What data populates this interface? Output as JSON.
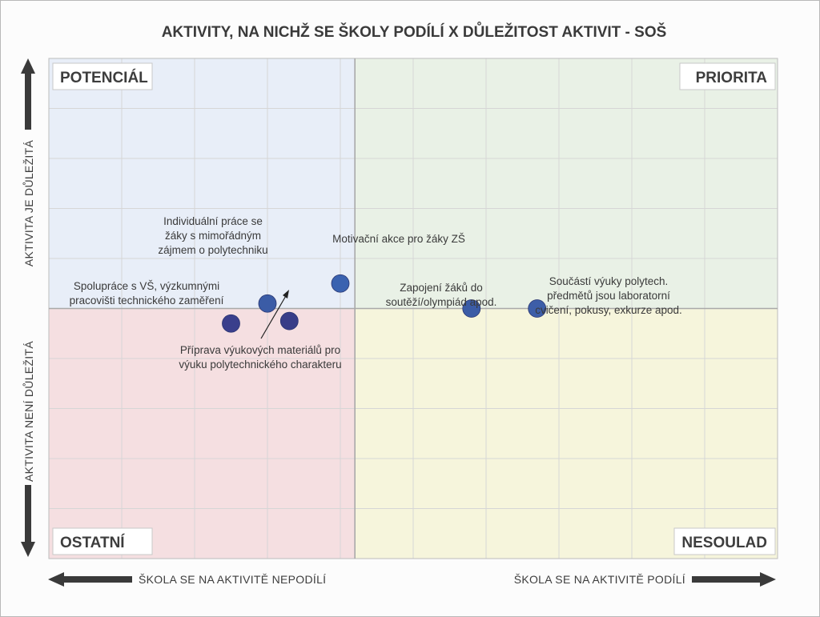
{
  "chart_data": {
    "type": "scatter",
    "title": "AKTIVITY, NA NICHŽ SE ŠKOLY PODÍLÍ X DŮLEŽITOST AKTIVIT - SOŠ",
    "quadrants": {
      "top_left": "POTENCIÁL",
      "top_right": "PRIORITA",
      "bottom_left": "OSTATNÍ",
      "bottom_right": "NESOULAD"
    },
    "quadrant_colors": {
      "top_left": "#e8eef8",
      "top_right": "#e9f1e6",
      "bottom_left": "#f5dfe1",
      "bottom_right": "#f6f5dc"
    },
    "x_axis": {
      "low_label": "ŠKOLA SE NA AKTIVITĚ NEPODÍLÍ",
      "high_label": "ŠKOLA SE NA AKTIVITĚ PODÍLÍ",
      "range": [
        0,
        10
      ],
      "midpoint": 4.2
    },
    "y_axis": {
      "high_label": "AKTIVITA JE DŮLEŽITÁ",
      "low_label": "AKTIVITA NENÍ DŮLEŽITÁ",
      "range": [
        0,
        10
      ],
      "midpoint": 5
    },
    "grid": true,
    "point_color": "#36499a",
    "points": [
      {
        "x": 3.0,
        "y": 5.1,
        "color": "#3b5ca6",
        "label": [
          "Individuální práce se",
          "žáky s mimořádným",
          "zájmem o polytechniku"
        ]
      },
      {
        "x": 4.0,
        "y": 5.5,
        "color": "#3a62b0",
        "label": [
          "Motivační akce pro žáky ZŠ"
        ]
      },
      {
        "x": 2.5,
        "y": 4.7,
        "color": "#3a3f8c",
        "label": [
          "Spolupráce s VŠ, výzkumnými",
          "pracovišti technického zaměření"
        ]
      },
      {
        "x": 3.3,
        "y": 4.75,
        "color": "#383d88",
        "label": [
          "Příprava výukových materiálů pro",
          "výuku polytechnického charakteru"
        ]
      },
      {
        "x": 5.8,
        "y": 5.0,
        "color": "#3b5ca6",
        "label": [
          "Zapojení žáků do",
          "soutěží/olympiád apod."
        ]
      },
      {
        "x": 6.7,
        "y": 5.0,
        "color": "#3d5ea8",
        "label": [
          "Součástí výuky polytech.",
          "předmětů jsou laboratorní",
          "cvičení, pokusy, exkurze apod."
        ]
      }
    ]
  }
}
